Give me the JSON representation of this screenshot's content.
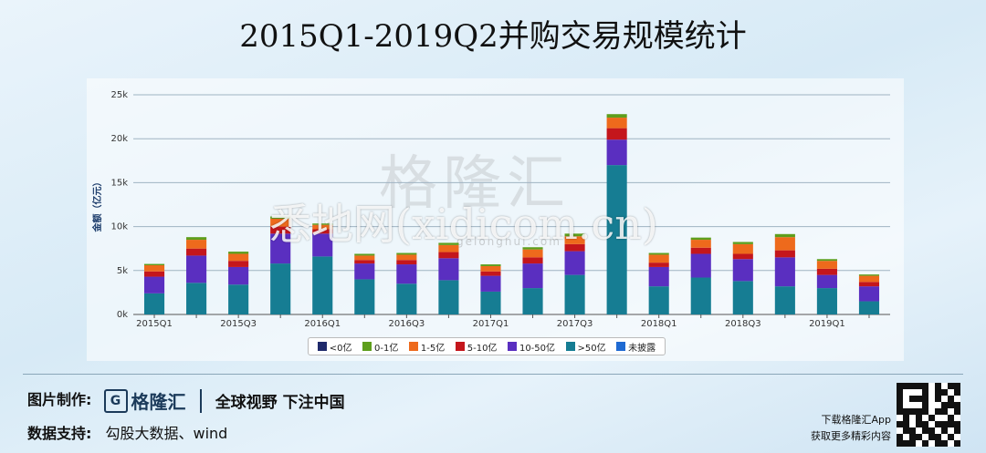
{
  "title": "2015Q1-2019Q2并购交易规模统计",
  "watermark": {
    "logo": "格隆汇",
    "url": "gelonghui.com",
    "main": "悉地网(xidicom.cn)"
  },
  "colors": {
    "lt0": "#1f2a6b",
    "b0_1": "#5e9e1c",
    "b1_5": "#ee6a1c",
    "b5_10": "#c4161c",
    "b10_50": "#5a2fc0",
    "gt50": "#167d93",
    "undisclosed": "#1f6ad2",
    "grid": "#9fb3c2",
    "axis": "#555555"
  },
  "chart_data": {
    "type": "bar",
    "stacked": true,
    "title": "2015Q1-2019Q2并购交易规模统计",
    "ylabel": "金额（亿元）",
    "ylim": [
      0,
      25000
    ],
    "yticks": [
      "0k",
      "5k",
      "10k",
      "15k",
      "20k",
      "25k"
    ],
    "ytick_values": [
      0,
      5000,
      10000,
      15000,
      20000,
      25000
    ],
    "grid": true,
    "legend_position": "bottom",
    "categories": [
      "2015Q1",
      "2015Q2",
      "2015Q3",
      "2015Q4",
      "2016Q1",
      "2016Q2",
      "2016Q3",
      "2016Q4",
      "2017Q1",
      "2017Q2",
      "2017Q3",
      "2017Q4",
      "2018Q1",
      "2018Q2",
      "2018Q3",
      "2018Q4",
      "2019Q1",
      "2019Q2"
    ],
    "xtick_labels": [
      "2015Q1",
      "",
      "2015Q3",
      "",
      "2016Q1",
      "",
      "2016Q3",
      "",
      "2017Q1",
      "",
      "2017Q3",
      "",
      "2018Q1",
      "",
      "2018Q3",
      "",
      "2019Q1",
      ""
    ],
    "series": [
      {
        "name": ">50亿",
        "color_key": "gt50",
        "values": [
          2400,
          3600,
          3400,
          5800,
          6600,
          4000,
          3500,
          3900,
          2600,
          3000,
          4500,
          17000,
          3200,
          4200,
          3800,
          3200,
          3000,
          1500
        ]
      },
      {
        "name": "10-50亿",
        "color_key": "b10_50",
        "values": [
          1900,
          3100,
          2000,
          3400,
          2600,
          1800,
          2200,
          2500,
          1800,
          2800,
          2700,
          2900,
          2200,
          2700,
          2500,
          3300,
          1500,
          1700
        ]
      },
      {
        "name": "5-10亿",
        "color_key": "b5_10",
        "values": [
          600,
          800,
          700,
          800,
          500,
          400,
          500,
          700,
          500,
          700,
          800,
          1300,
          500,
          700,
          600,
          800,
          700,
          500
        ]
      },
      {
        "name": "1-5亿",
        "color_key": "b1_5",
        "values": [
          700,
          1000,
          800,
          900,
          500,
          500,
          600,
          800,
          600,
          900,
          900,
          1200,
          900,
          900,
          1100,
          1500,
          900,
          700
        ]
      },
      {
        "name": "0-1亿",
        "color_key": "b0_1",
        "values": [
          150,
          300,
          250,
          250,
          150,
          200,
          200,
          250,
          200,
          250,
          300,
          400,
          200,
          250,
          250,
          350,
          200,
          150
        ]
      },
      {
        "name": "<0亿",
        "color_key": "lt0",
        "values": [
          0,
          0,
          0,
          0,
          0,
          0,
          0,
          0,
          0,
          0,
          0,
          0,
          0,
          0,
          0,
          0,
          0,
          0
        ]
      },
      {
        "name": "未披露",
        "color_key": "undisclosed",
        "values": [
          0,
          0,
          0,
          0,
          0,
          0,
          0,
          0,
          0,
          0,
          0,
          0,
          0,
          0,
          0,
          0,
          0,
          0
        ]
      }
    ],
    "legend": [
      {
        "name": "<0亿",
        "color_key": "lt0"
      },
      {
        "name": "0-1亿",
        "color_key": "b0_1"
      },
      {
        "name": "1-5亿",
        "color_key": "b1_5"
      },
      {
        "name": "5-10亿",
        "color_key": "b5_10"
      },
      {
        "name": "10-50亿",
        "color_key": "b10_50"
      },
      {
        "name": ">50亿",
        "color_key": "gt50"
      },
      {
        "name": "未披露",
        "color_key": "undisclosed"
      }
    ]
  },
  "footer": {
    "made_by_label": "图片制作:",
    "brand_mark": "G",
    "brand_name": "格隆汇",
    "slogan": "全球视野 下注中国",
    "data_support_label": "数据支持:",
    "data_support_value": "勾股大数据、wind",
    "app_line1": "下载格隆汇App",
    "app_line2": "获取更多精彩内容"
  }
}
